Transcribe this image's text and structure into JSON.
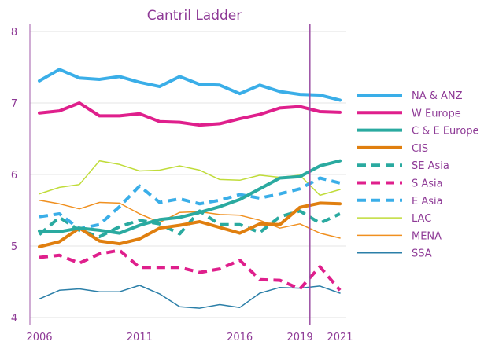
{
  "chart_data": {
    "type": "line",
    "title": "Cantril Ladder",
    "xlabel": "",
    "ylabel": "",
    "x": [
      2006,
      2007,
      2008,
      2009,
      2010,
      2011,
      2012,
      2013,
      2014,
      2015,
      2016,
      2017,
      2018,
      2019,
      2020,
      2021
    ],
    "xticks": [
      "2006",
      "2011",
      "2016",
      "2019",
      "2021"
    ],
    "yticks": [
      "4",
      "5",
      "6",
      "7",
      "8"
    ],
    "ylim": [
      3.9,
      8.1
    ],
    "xlim": [
      2006,
      2021
    ],
    "grid": true,
    "legend_position": "right",
    "reference_line_x": 2019.5,
    "series": [
      {
        "name": "NA & ANZ",
        "color": "#3aaee8",
        "style": "solid",
        "width": "thick",
        "values": [
          7.31,
          7.47,
          7.35,
          7.33,
          7.37,
          7.29,
          7.23,
          7.37,
          7.26,
          7.25,
          7.13,
          7.25,
          7.16,
          7.12,
          7.11,
          7.04
        ]
      },
      {
        "name": "W Europe",
        "color": "#df1f8c",
        "style": "solid",
        "width": "thick",
        "values": [
          6.86,
          6.89,
          7.0,
          6.82,
          6.82,
          6.85,
          6.74,
          6.73,
          6.69,
          6.71,
          6.78,
          6.84,
          6.93,
          6.95,
          6.88,
          6.87
        ]
      },
      {
        "name": "C & E Europe",
        "color": "#2aaaa0",
        "style": "solid",
        "width": "thick",
        "values": [
          5.21,
          5.2,
          5.25,
          5.22,
          5.18,
          5.29,
          5.37,
          5.4,
          5.47,
          5.55,
          5.65,
          5.8,
          5.95,
          5.97,
          6.12,
          6.19
        ]
      },
      {
        "name": "CIS",
        "color": "#e07f0f",
        "style": "solid",
        "width": "thick",
        "values": [
          4.99,
          5.06,
          5.25,
          5.07,
          5.03,
          5.1,
          5.25,
          5.29,
          5.34,
          5.26,
          5.18,
          5.31,
          5.3,
          5.54,
          5.6,
          5.59
        ]
      },
      {
        "name": "SE Asia",
        "color": "#2aaaa0",
        "style": "dashed",
        "width": "thick",
        "values": [
          5.16,
          5.4,
          5.22,
          5.13,
          5.27,
          5.36,
          5.31,
          5.17,
          5.49,
          5.3,
          5.3,
          5.19,
          5.41,
          5.49,
          5.32,
          5.45
        ]
      },
      {
        "name": "S Asia",
        "color": "#df1f8c",
        "style": "dashed",
        "width": "thick",
        "values": [
          4.84,
          4.87,
          4.76,
          4.89,
          4.94,
          4.7,
          4.7,
          4.7,
          4.63,
          4.68,
          4.8,
          4.53,
          4.52,
          4.4,
          4.71,
          4.38
        ]
      },
      {
        "name": "E Asia",
        "color": "#3aaee8",
        "style": "dashed",
        "width": "thick",
        "values": [
          5.41,
          5.45,
          5.24,
          5.3,
          5.55,
          5.84,
          5.61,
          5.66,
          5.59,
          5.64,
          5.72,
          5.67,
          5.73,
          5.8,
          5.95,
          5.88
        ]
      },
      {
        "name": "LAC",
        "color": "#c0dc3a",
        "style": "solid",
        "width": "thin",
        "values": [
          5.73,
          5.82,
          5.86,
          6.19,
          6.14,
          6.05,
          6.06,
          6.12,
          6.06,
          5.93,
          5.92,
          5.99,
          5.96,
          5.99,
          5.71,
          5.79
        ]
      },
      {
        "name": "MENA",
        "color": "#f09020",
        "style": "solid",
        "width": "thin",
        "values": [
          5.64,
          5.59,
          5.52,
          5.61,
          5.6,
          5.45,
          5.33,
          5.47,
          5.48,
          5.44,
          5.43,
          5.36,
          5.25,
          5.31,
          5.18,
          5.11
        ]
      },
      {
        "name": "SSA",
        "color": "#2b7fa8",
        "style": "solid",
        "width": "thin",
        "values": [
          4.26,
          4.38,
          4.4,
          4.36,
          4.36,
          4.45,
          4.33,
          4.15,
          4.13,
          4.18,
          4.14,
          4.34,
          4.42,
          4.41,
          4.44,
          4.34
        ]
      }
    ]
  }
}
